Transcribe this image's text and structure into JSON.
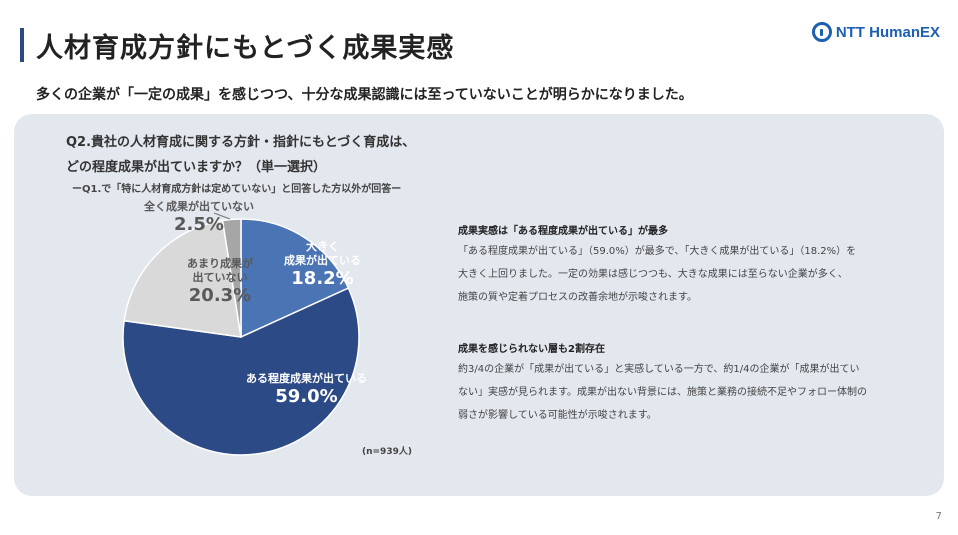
{
  "header": {
    "title": "人材育成方針にもとづく成果実感",
    "logo_text": "NTT HumanEX",
    "subtitle": "多くの企業が「一定の成果」を感じつつ、十分な成果認識には至っていないことが明らかになりました。"
  },
  "question": {
    "line1": "Q2.貴社の人材育成に関する方針・指針にもとづく育成は、",
    "line2": "どの程度成果が出ていますか？（単一選択）",
    "note": "ーQ1.で「特に人材育成方針は定めていない」と回答した方以外が回答ー"
  },
  "chart_data": {
    "type": "pie",
    "slices": [
      {
        "label": "大きく成果が出ている",
        "label_lines": [
          "大きく",
          "成果が出ている"
        ],
        "value": 18.2,
        "value_label": "18.2%",
        "color": "#4a74b4",
        "text_color": "#ffffff"
      },
      {
        "label": "ある程度成果が出ている",
        "label_lines": [
          "ある程度成果が出ている"
        ],
        "value": 59.0,
        "value_label": "59.0%",
        "color": "#2c4b86",
        "text_color": "#ffffff"
      },
      {
        "label": "あまり成果が出ていない",
        "label_lines": [
          "あまり成果が",
          "出ていない"
        ],
        "value": 20.3,
        "value_label": "20.3%",
        "color": "#d9d9d9",
        "text_color": "#595959"
      },
      {
        "label": "全く成果が出ていない",
        "label_lines": [
          "全く成果が出ていない"
        ],
        "value": 2.5,
        "value_label": "2.5%",
        "color": "#a6a6a6",
        "text_color": "#595959"
      }
    ],
    "start_angle_deg": 0,
    "direction": "clockwise",
    "sample_note": "(n=939人)"
  },
  "findings": [
    {
      "heading": "成果実感は「ある程度成果が出ている」が最多",
      "lines": [
        "「ある程度成果が出ている」（59.0%）が最多で、「大きく成果が出ている」（18.2%）を",
        "大きく上回りました。一定の効果は感じつつも、大きな成果には至らない企業が多く、",
        "施策の質や定着プロセスの改善余地が示唆されます。"
      ]
    },
    {
      "heading": "成果を感じられない層も2割存在",
      "lines": [
        "約3/4の企業が「成果が出ている」と実感している一方で、約1/4の企業が「成果が出てい",
        "ない」実感が見られます。成果が出ない背景には、施策と業務の接続不足やフォロー体制の",
        "弱さが影響している可能性が示唆されます。"
      ]
    }
  ],
  "page_number": "7"
}
